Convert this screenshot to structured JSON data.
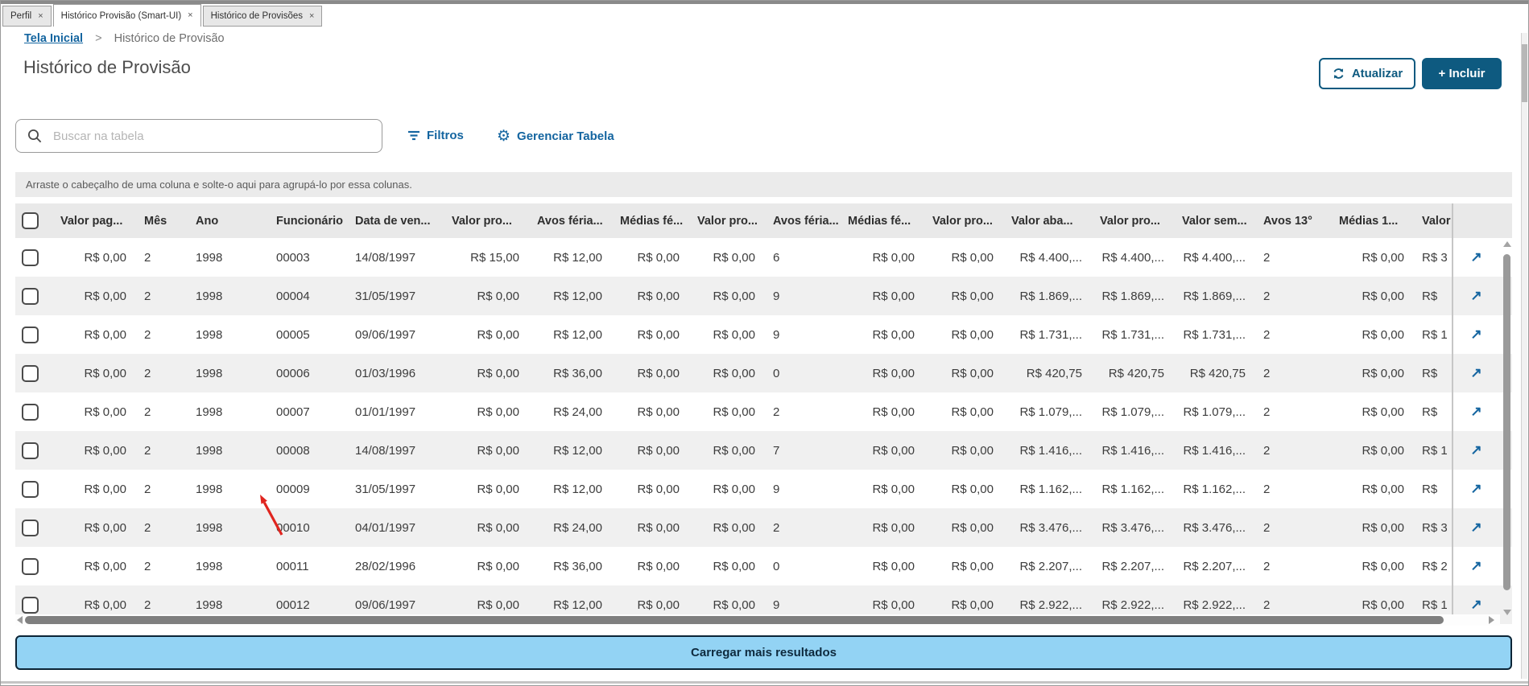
{
  "window": {
    "tabs": [
      {
        "label": "Perfil",
        "close": "×",
        "active": false
      },
      {
        "label": "Histórico Provisão (Smart-UI)",
        "close": "×",
        "active": true
      },
      {
        "label": "Histórico de Provisões",
        "close": "×",
        "active": false
      }
    ],
    "breadcrumb": {
      "home": "Tela Inicial",
      "separator": ">",
      "current": "Histórico de Provisão"
    },
    "page_title": "Histórico de Provisão",
    "actions": {
      "refresh_label": "Atualizar",
      "add_label": "+ Incluir"
    },
    "toolbar": {
      "search_placeholder": "Buscar na tabela",
      "filters_label": "Filtros",
      "manage_table_label": "Gerenciar Tabela"
    },
    "group_band_text": "Arraste o cabeçalho de uma coluna e solte-o aqui para agrupá-lo por essa colunas.",
    "table": {
      "headers": [
        "Valor pag...",
        "Mês",
        "Ano",
        "Funcionário",
        "Data de ven...",
        "Valor pro...",
        "Avos féria...",
        "Médias fé...",
        "Valor pro...",
        "Avos féria...",
        "Médias fé...",
        "Valor pro...",
        "Valor aba...",
        "Valor pro...",
        "Valor sem...",
        "Avos 13°",
        "Médias 1...",
        "Valor"
      ],
      "row_action_icon": "open-record-arrow",
      "rows": [
        [
          "R$ 0,00",
          "2",
          "1998",
          "00003",
          "14/08/1997",
          "R$ 15,00",
          "R$ 12,00",
          "R$ 0,00",
          "R$ 0,00",
          "6",
          "R$ 0,00",
          "R$ 0,00",
          "R$ 4.400,...",
          "R$ 4.400,...",
          "R$ 4.400,...",
          "2",
          "R$ 0,00",
          "R$ 3"
        ],
        [
          "R$ 0,00",
          "2",
          "1998",
          "00004",
          "31/05/1997",
          "R$ 0,00",
          "R$ 12,00",
          "R$ 0,00",
          "R$ 0,00",
          "9",
          "R$ 0,00",
          "R$ 0,00",
          "R$ 1.869,...",
          "R$ 1.869,...",
          "R$ 1.869,...",
          "2",
          "R$ 0,00",
          "R$"
        ],
        [
          "R$ 0,00",
          "2",
          "1998",
          "00005",
          "09/06/1997",
          "R$ 0,00",
          "R$ 12,00",
          "R$ 0,00",
          "R$ 0,00",
          "9",
          "R$ 0,00",
          "R$ 0,00",
          "R$ 1.731,...",
          "R$ 1.731,...",
          "R$ 1.731,...",
          "2",
          "R$ 0,00",
          "R$ 1"
        ],
        [
          "R$ 0,00",
          "2",
          "1998",
          "00006",
          "01/03/1996",
          "R$ 0,00",
          "R$ 36,00",
          "R$ 0,00",
          "R$ 0,00",
          "0",
          "R$ 0,00",
          "R$ 0,00",
          "R$ 420,75",
          "R$ 420,75",
          "R$ 420,75",
          "2",
          "R$ 0,00",
          "R$"
        ],
        [
          "R$ 0,00",
          "2",
          "1998",
          "00007",
          "01/01/1997",
          "R$ 0,00",
          "R$ 24,00",
          "R$ 0,00",
          "R$ 0,00",
          "2",
          "R$ 0,00",
          "R$ 0,00",
          "R$ 1.079,...",
          "R$ 1.079,...",
          "R$ 1.079,...",
          "2",
          "R$ 0,00",
          "R$"
        ],
        [
          "R$ 0,00",
          "2",
          "1998",
          "00008",
          "14/08/1997",
          "R$ 0,00",
          "R$ 12,00",
          "R$ 0,00",
          "R$ 0,00",
          "7",
          "R$ 0,00",
          "R$ 0,00",
          "R$ 1.416,...",
          "R$ 1.416,...",
          "R$ 1.416,...",
          "2",
          "R$ 0,00",
          "R$ 1"
        ],
        [
          "R$ 0,00",
          "2",
          "1998",
          "00009",
          "31/05/1997",
          "R$ 0,00",
          "R$ 12,00",
          "R$ 0,00",
          "R$ 0,00",
          "9",
          "R$ 0,00",
          "R$ 0,00",
          "R$ 1.162,...",
          "R$ 1.162,...",
          "R$ 1.162,...",
          "2",
          "R$ 0,00",
          "R$"
        ],
        [
          "R$ 0,00",
          "2",
          "1998",
          "00010",
          "04/01/1997",
          "R$ 0,00",
          "R$ 24,00",
          "R$ 0,00",
          "R$ 0,00",
          "2",
          "R$ 0,00",
          "R$ 0,00",
          "R$ 3.476,...",
          "R$ 3.476,...",
          "R$ 3.476,...",
          "2",
          "R$ 0,00",
          "R$ 3"
        ],
        [
          "R$ 0,00",
          "2",
          "1998",
          "00011",
          "28/02/1996",
          "R$ 0,00",
          "R$ 36,00",
          "R$ 0,00",
          "R$ 0,00",
          "0",
          "R$ 0,00",
          "R$ 0,00",
          "R$ 2.207,...",
          "R$ 2.207,...",
          "R$ 2.207,...",
          "2",
          "R$ 0,00",
          "R$ 2"
        ],
        [
          "R$ 0,00",
          "2",
          "1998",
          "00012",
          "09/06/1997",
          "R$ 0,00",
          "R$ 12,00",
          "R$ 0,00",
          "R$ 0,00",
          "9",
          "R$ 0,00",
          "R$ 0,00",
          "R$ 2.922,...",
          "R$ 2.922,...",
          "R$ 2.922,...",
          "2",
          "R$ 0,00",
          "R$ 1"
        ]
      ]
    },
    "load_more_label": "Carregar mais resultados",
    "colors": {
      "accent_button": "#0e5a80",
      "link_blue": "#1465a0",
      "load_more_bg": "#93d3f4",
      "load_more_border": "#0b2436",
      "annotation_arrow_red": "#e0251f",
      "row_stripe": "#f0f0f0",
      "header_bg": "#e9e9e9"
    }
  }
}
